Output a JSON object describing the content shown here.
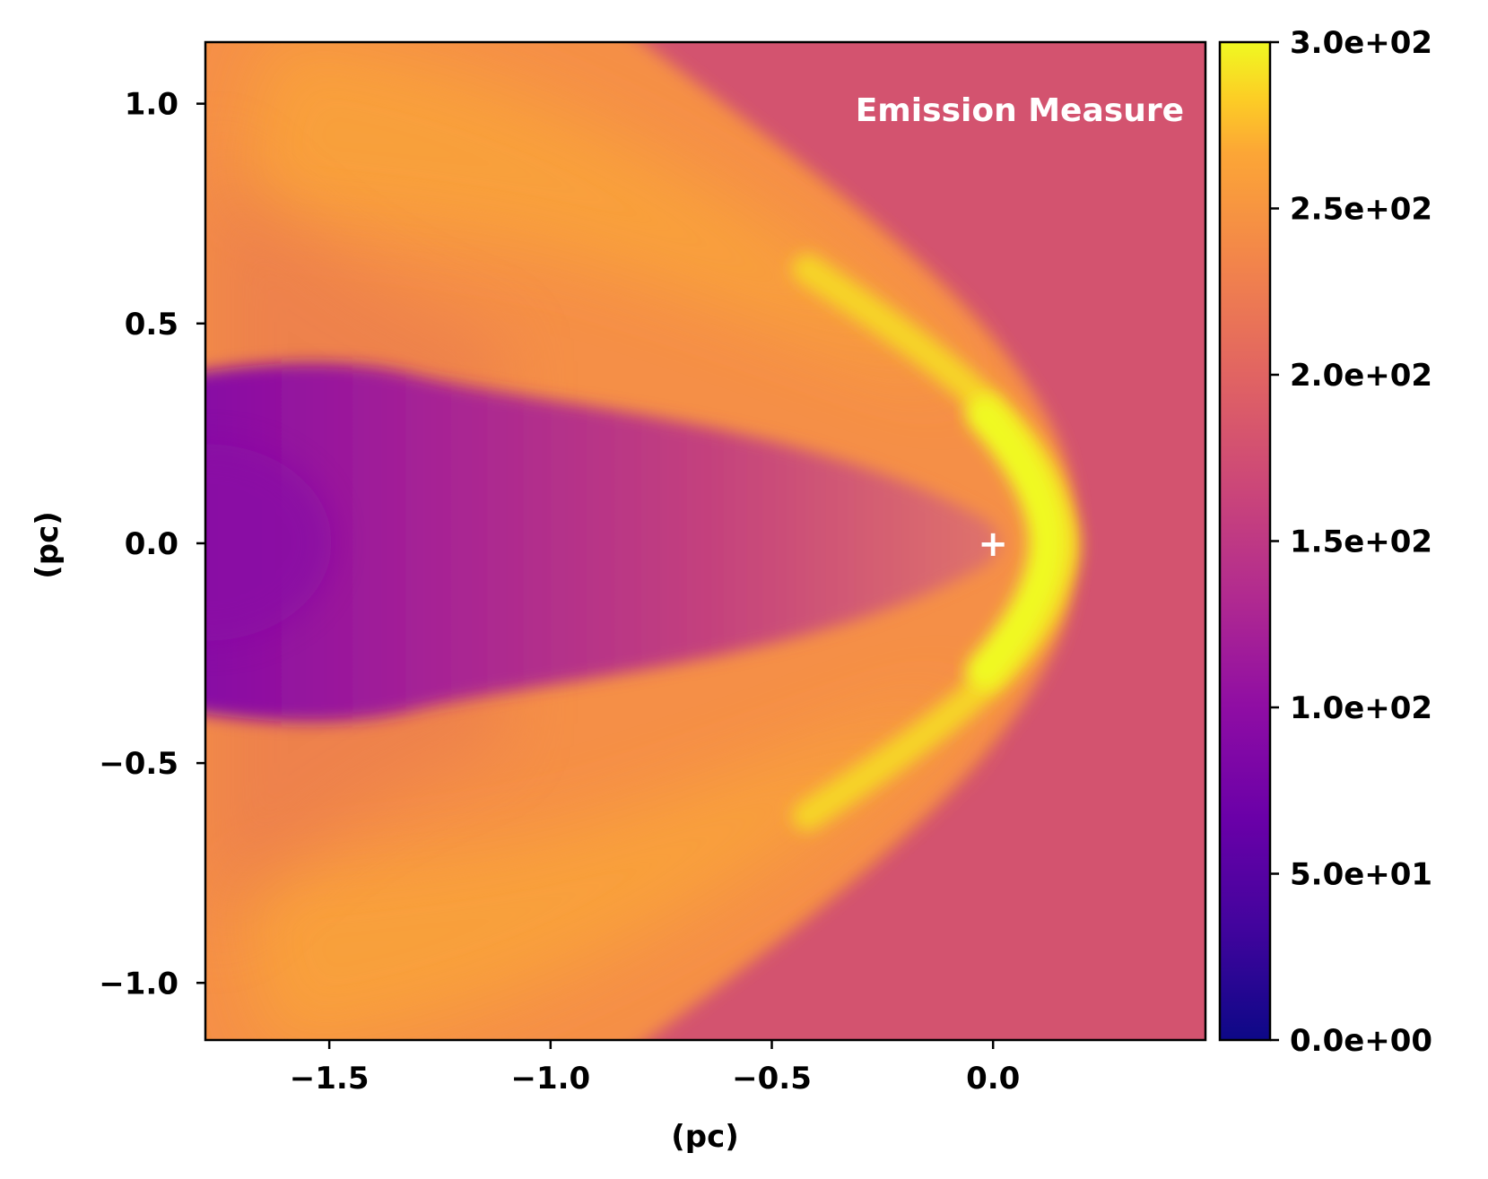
{
  "chart_data": {
    "type": "heatmap",
    "title": "",
    "panel_label": "Emission Measure",
    "xlabel": "(pc)",
    "ylabel": "(pc)",
    "xlim": [
      -1.78,
      0.48
    ],
    "ylim": [
      -1.13,
      1.14
    ],
    "x_ticks": [
      -1.5,
      -1.0,
      -0.5,
      0.0
    ],
    "x_tick_labels": [
      "−1.5",
      "−1.0",
      "−0.5",
      "0.0"
    ],
    "y_ticks": [
      1.0,
      0.5,
      0.0,
      -0.5,
      -1.0
    ],
    "y_tick_labels": [
      "1.0",
      "0.5",
      "0.0",
      "−0.5",
      "−1.0"
    ],
    "colormap": "plasma",
    "colorbar": {
      "min": 0,
      "max": 300,
      "ticks": [
        300,
        250,
        200,
        150,
        100,
        50,
        0
      ],
      "tick_labels": [
        "3.0e+02",
        "2.5e+02",
        "2.0e+02",
        "1.5e+02",
        "1.0e+02",
        "5.0e+01",
        "0.0e+00"
      ]
    },
    "background_value": 152,
    "marker": {
      "symbol": "+",
      "x": 0.0,
      "y": 0.0,
      "color": "#ffffff"
    },
    "features": [
      {
        "name": "bow-shock-apex",
        "x": 0.18,
        "y": 0.0,
        "value": 290
      },
      {
        "name": "wake-minimum",
        "x": -1.75,
        "y": 0.0,
        "value": 75
      },
      {
        "name": "upper-wing",
        "x": -1.0,
        "y": 0.8,
        "value": 235
      },
      {
        "name": "lower-wing",
        "x": -1.0,
        "y": -0.8,
        "value": 235
      }
    ],
    "colors": {
      "background": "#d3536f",
      "wake_dark": "#8305a7",
      "wing": "#f58c46",
      "wing_bright": "#f9a136",
      "apex": "#f0f921"
    },
    "grid": false
  }
}
